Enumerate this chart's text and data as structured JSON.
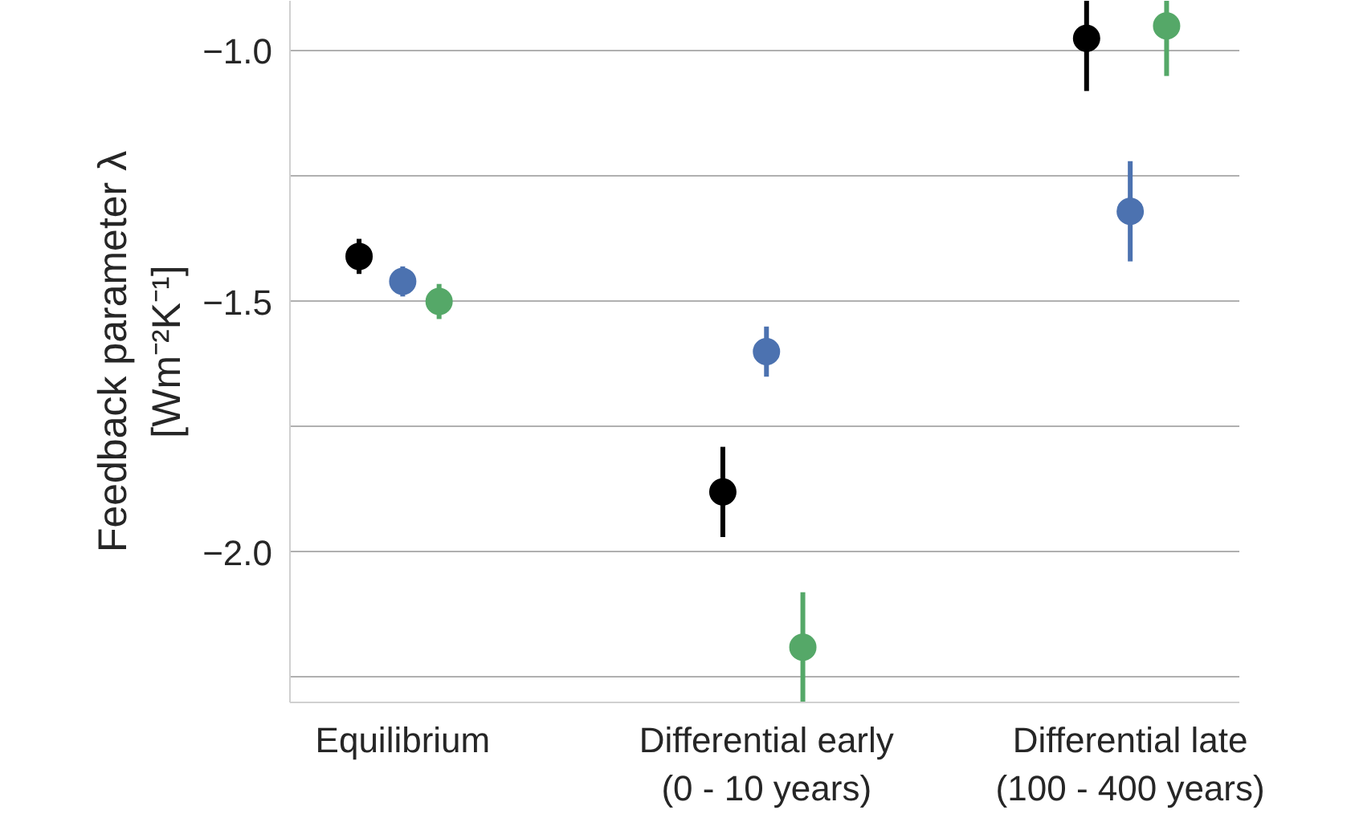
{
  "chart_data": {
    "type": "scatter",
    "ylabel": "Feedback parameter λ\n[Wm⁻²K⁻¹]",
    "categories": [
      "Equilibrium",
      "Differential early\n(0 - 10 years)",
      "Differential late\n(100 - 400 years)"
    ],
    "series": [
      {
        "color": "#000000",
        "values": [
          -1.41,
          -1.88,
          -0.975
        ],
        "errors": [
          0.035,
          0.09,
          [
            -1.08,
            -0.9
          ]
        ]
      },
      {
        "color": "#4c72b0",
        "values": [
          -1.46,
          -1.6,
          -1.32
        ],
        "errors": [
          0.03,
          0.05,
          0.1
        ]
      },
      {
        "color": "#55a868",
        "values": [
          -1.5,
          -2.19,
          -0.95
        ],
        "errors": [
          0.035,
          0.11,
          [
            -1.05,
            -0.9
          ]
        ]
      }
    ],
    "yticks": [
      {
        "value": -2.25,
        "label": null
      },
      {
        "value": -2.0,
        "label": "−2.0"
      },
      {
        "value": -1.75,
        "label": null
      },
      {
        "value": -1.5,
        "label": "−1.5"
      },
      {
        "value": -1.25,
        "label": null
      },
      {
        "value": -1.0,
        "label": "−1.0"
      }
    ],
    "ylim": [
      -2.3,
      -0.9
    ],
    "grid": "y",
    "marker": "circle"
  }
}
